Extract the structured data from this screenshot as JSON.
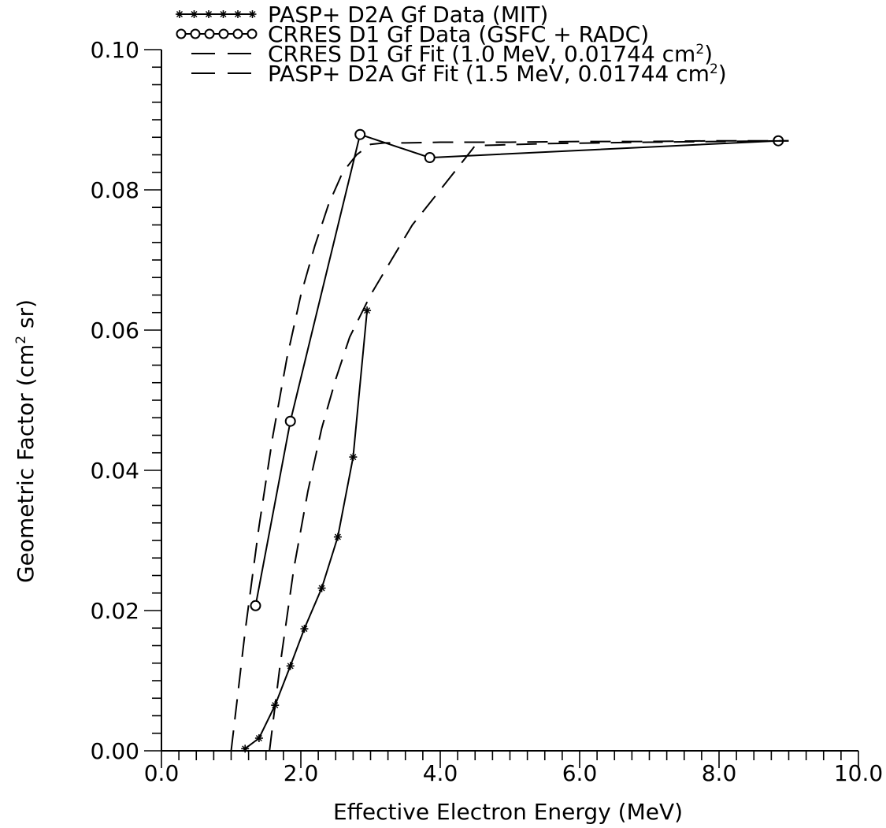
{
  "chart_data": {
    "type": "line",
    "xlabel": "Effective Electron Energy (MeV)",
    "ylabel_parts": [
      "Geometric Factor (cm",
      "2",
      " sr)"
    ],
    "xlim": [
      0,
      10
    ],
    "ylim": [
      0,
      0.1
    ],
    "x_ticks": [
      0,
      2,
      4,
      6,
      8,
      10
    ],
    "x_tick_labels": [
      "0.0",
      "2.0",
      "4.0",
      "6.0",
      "8.0",
      "10.0"
    ],
    "y_ticks": [
      0,
      0.02,
      0.04,
      0.06,
      0.08,
      0.1
    ],
    "y_tick_labels": [
      "0.00",
      "0.02",
      "0.04",
      "0.06",
      "0.08",
      "0.10"
    ],
    "grid": false,
    "legend_position": "top",
    "series": [
      {
        "name": "PASP+ D2A Gf Data (MIT)",
        "style": "solid-star",
        "x": [
          1.2,
          1.4,
          1.63,
          1.85,
          2.05,
          2.3,
          2.53,
          2.75,
          2.95
        ],
        "y": [
          0.0003,
          0.0018,
          0.0065,
          0.0121,
          0.0174,
          0.0232,
          0.0305,
          0.0419,
          0.0628
        ]
      },
      {
        "name": "CRRES D1 Gf Data (GSFC + RADC)",
        "style": "solid-circle",
        "x": [
          1.35,
          1.85,
          2.85,
          3.85,
          8.85
        ],
        "y": [
          0.0207,
          0.047,
          0.0879,
          0.0846,
          0.087
        ]
      },
      {
        "name_parts": [
          "CRRES D1 Gf Fit (1.0 MeV, 0.01744 cm",
          "2",
          ")"
        ],
        "style": "dashed",
        "x": [
          1.0,
          1.1,
          1.2,
          1.4,
          1.6,
          1.8,
          2.0,
          2.2,
          2.4,
          2.6,
          2.8,
          3.0,
          3.2,
          3.5,
          4.0,
          5.0,
          6.0,
          7.0,
          8.0,
          9.0
        ],
        "y": [
          0.0,
          0.0085,
          0.017,
          0.032,
          0.045,
          0.056,
          0.065,
          0.072,
          0.078,
          0.0825,
          0.085,
          0.0865,
          0.0867,
          0.0867,
          0.0868,
          0.0868,
          0.0869,
          0.0869,
          0.087,
          0.087
        ]
      },
      {
        "name_parts": [
          "PASP+ D2A Gf Fit (1.5 MeV, 0.01744 cm",
          "2",
          ")"
        ],
        "style": "dashed",
        "x": [
          1.55,
          1.7,
          1.9,
          2.1,
          2.3,
          2.5,
          2.7,
          3.0,
          3.3,
          3.6,
          4.0,
          4.5,
          5.5,
          7.0,
          9.0
        ],
        "y": [
          0.0,
          0.012,
          0.026,
          0.037,
          0.046,
          0.053,
          0.059,
          0.065,
          0.07,
          0.075,
          0.08,
          0.0863,
          0.0866,
          0.0868,
          0.087
        ]
      }
    ]
  }
}
